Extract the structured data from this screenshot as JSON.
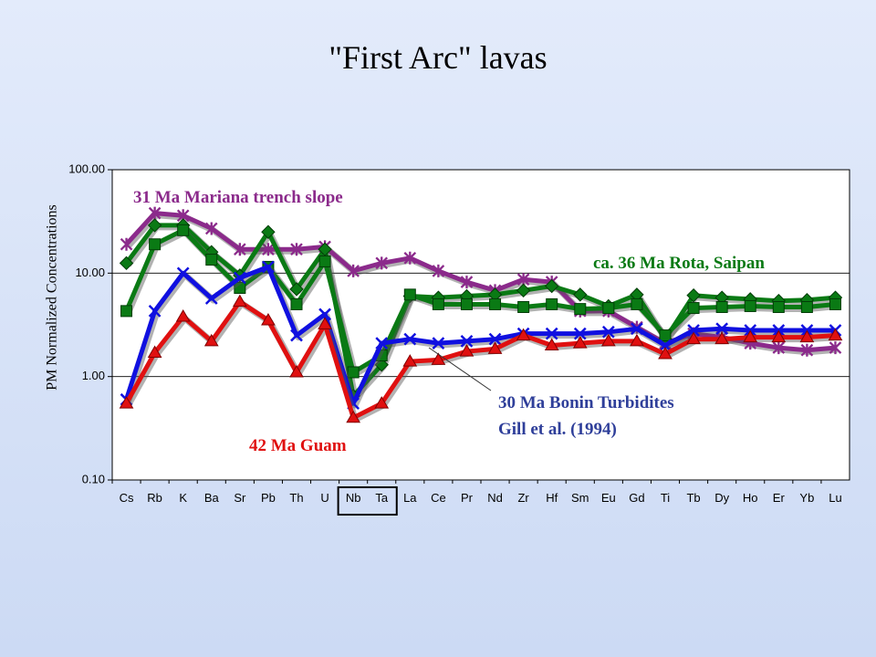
{
  "title": "\"First Arc\" lavas",
  "chart_data": {
    "type": "line",
    "yscale": "log",
    "ylim": [
      0.1,
      100
    ],
    "ylabel": "PM Normalized Concentrations",
    "yticks": [
      "0.10",
      "1.00",
      "10.00",
      "100.00"
    ],
    "categories": [
      "Cs",
      "Rb",
      "K",
      "Ba",
      "Sr",
      "Pb",
      "Th",
      "U",
      "Nb",
      "Ta",
      "La",
      "Ce",
      "Pr",
      "Nd",
      "Zr",
      "Hf",
      "Sm",
      "Eu",
      "Gd",
      "Ti",
      "Tb",
      "Dy",
      "Ho",
      "Er",
      "Yb",
      "Lu"
    ],
    "highlighted_categories": [
      "Nb",
      "Ta"
    ],
    "grid": true,
    "annotations": [
      {
        "text": "31 Ma Mariana trench slope",
        "color": "#8b2a8b"
      },
      {
        "text": "ca. 36 Ma Rota, Saipan",
        "color": "#0a7a14"
      },
      {
        "text": "30 Ma Bonin Turbidites",
        "color": "#2f3f9a"
      },
      {
        "text": "Gill et al. (1994)",
        "color": "#2f3f9a"
      },
      {
        "text": "42 Ma Guam",
        "color": "#e01010"
      }
    ],
    "series": [
      {
        "color": "#8b2a8b",
        "marker": "star",
        "values": [
          19,
          38,
          36,
          27,
          17,
          17,
          17,
          18,
          10.5,
          12.5,
          14,
          10.5,
          8.2,
          6.8,
          8.7,
          8.2,
          4.3,
          4.3,
          3.0,
          2.1,
          2.6,
          2.4,
          2.1,
          1.9,
          1.8,
          1.9
        ]
      },
      {
        "color": "#0a7a14",
        "marker": "diamond",
        "values": [
          12.5,
          29,
          29,
          16,
          9.5,
          25,
          7,
          17,
          0.65,
          1.3,
          6,
          5.8,
          6,
          6.2,
          6.8,
          7.5,
          6.2,
          4.8,
          6.2,
          2.3,
          6.1,
          5.8,
          5.6,
          5.4,
          5.5,
          5.8
        ]
      },
      {
        "color": "#0a7a14",
        "marker": "square",
        "values": [
          4.3,
          19,
          26,
          13.5,
          7.2,
          11.5,
          5,
          13,
          1.1,
          1.6,
          6.2,
          5,
          5,
          5,
          4.7,
          5,
          4.5,
          4.6,
          5,
          2.5,
          4.6,
          4.7,
          4.8,
          4.7,
          4.7,
          5
        ]
      },
      {
        "color": "#1010e0",
        "marker": "x",
        "values": [
          0.6,
          4.3,
          10,
          5.7,
          9,
          11.5,
          2.5,
          4,
          0.55,
          2.1,
          2.3,
          2.1,
          2.2,
          2.3,
          2.6,
          2.6,
          2.6,
          2.7,
          2.9,
          2.0,
          2.8,
          2.9,
          2.8,
          2.8,
          2.8,
          2.8
        ]
      },
      {
        "color": "#e01010",
        "marker": "triangle",
        "values": [
          0.55,
          1.7,
          3.8,
          2.2,
          5.3,
          3.5,
          1.1,
          3.2,
          0.4,
          0.55,
          1.4,
          1.45,
          1.75,
          1.85,
          2.5,
          2.0,
          2.1,
          2.2,
          2.2,
          1.65,
          2.3,
          2.3,
          2.4,
          2.4,
          2.4,
          2.5
        ]
      }
    ]
  }
}
